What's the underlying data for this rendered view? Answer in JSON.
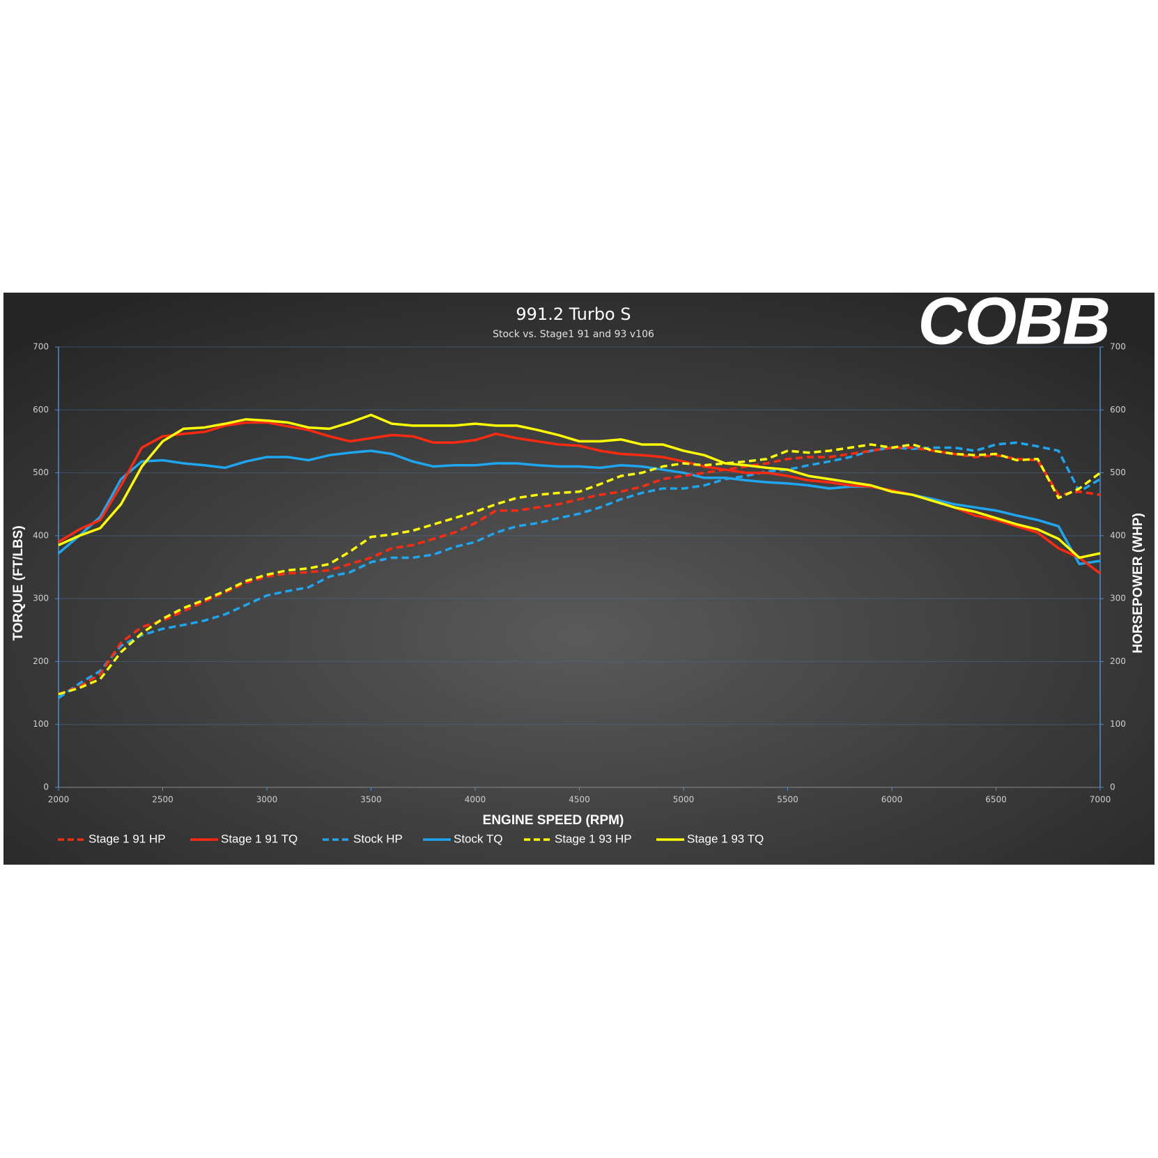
{
  "chart_data": {
    "type": "line",
    "title": "991.2 Turbo S",
    "subtitle": "Stock vs. Stage1 91 and 93 v106",
    "logo": "COBB",
    "x_label": "ENGINE SPEED (RPM)",
    "y_label": "TORQUE (FT/LBS)",
    "y2_label": "HORSEPOWER (WHP)",
    "xlim": [
      2000,
      7000
    ],
    "xticks": [
      2000,
      2500,
      3000,
      3500,
      4000,
      4500,
      5000,
      5500,
      6000,
      6500,
      7000
    ],
    "ylim": [
      0,
      700
    ],
    "yticks": [
      0,
      100,
      200,
      300,
      400,
      500,
      600,
      700
    ],
    "y2lim": [
      0,
      700
    ],
    "y2ticks": [
      0,
      100,
      200,
      300,
      400,
      500,
      600,
      700
    ],
    "grid": true,
    "legend": "bottom",
    "x": [
      2000,
      2100,
      2200,
      2300,
      2400,
      2500,
      2600,
      2700,
      2800,
      2900,
      3000,
      3100,
      3200,
      3300,
      3400,
      3500,
      3600,
      3700,
      3800,
      3900,
      4000,
      4100,
      4200,
      4300,
      4400,
      4500,
      4600,
      4700,
      4800,
      4900,
      5000,
      5100,
      5200,
      5300,
      5400,
      5500,
      5600,
      5700,
      5800,
      5900,
      6000,
      6100,
      6200,
      6300,
      6400,
      6500,
      6600,
      6700,
      6800,
      6900,
      7000
    ],
    "series": [
      {
        "name": "Stage 1 91 HP",
        "color": "#ff2a10",
        "dash": true,
        "axis": "y2",
        "values": [
          148,
          160,
          180,
          230,
          255,
          265,
          280,
          295,
          310,
          325,
          335,
          340,
          342,
          345,
          355,
          365,
          380,
          385,
          395,
          405,
          420,
          440,
          440,
          445,
          450,
          458,
          465,
          470,
          478,
          490,
          495,
          500,
          505,
          510,
          515,
          522,
          525,
          525,
          530,
          535,
          540,
          540,
          535,
          530,
          525,
          528,
          522,
          520,
          465,
          470,
          465
        ]
      },
      {
        "name": "Stage 1 91 TQ",
        "color": "#ff2a10",
        "dash": false,
        "values": [
          390,
          410,
          425,
          480,
          540,
          558,
          562,
          565,
          575,
          580,
          580,
          574,
          568,
          558,
          550,
          555,
          560,
          558,
          548,
          548,
          552,
          562,
          555,
          550,
          545,
          543,
          535,
          530,
          528,
          525,
          518,
          510,
          505,
          500,
          500,
          495,
          488,
          485,
          480,
          478,
          472,
          465,
          455,
          445,
          432,
          425,
          415,
          405,
          380,
          365,
          340
        ]
      },
      {
        "name": "Stock HP",
        "color": "#1ea7f0",
        "dash": true,
        "axis": "y2",
        "values": [
          142,
          165,
          185,
          225,
          242,
          252,
          258,
          265,
          275,
          290,
          305,
          312,
          318,
          335,
          342,
          358,
          365,
          365,
          370,
          382,
          390,
          405,
          415,
          420,
          428,
          435,
          445,
          458,
          468,
          475,
          475,
          480,
          490,
          495,
          502,
          505,
          512,
          518,
          525,
          535,
          540,
          538,
          540,
          540,
          535,
          545,
          548,
          542,
          535,
          470,
          490
        ]
      },
      {
        "name": "Stock TQ",
        "color": "#1ea7f0",
        "dash": false,
        "values": [
          372,
          400,
          430,
          490,
          518,
          520,
          515,
          512,
          508,
          518,
          525,
          525,
          520,
          528,
          532,
          535,
          530,
          518,
          510,
          512,
          512,
          515,
          515,
          512,
          510,
          510,
          508,
          512,
          510,
          505,
          500,
          492,
          492,
          488,
          485,
          483,
          480,
          475,
          478,
          478,
          472,
          465,
          458,
          450,
          445,
          440,
          432,
          425,
          415,
          355,
          360
        ]
      },
      {
        "name": "Stage 1 93 HP",
        "color": "#ffff00",
        "dash": true,
        "axis": "y2",
        "values": [
          148,
          158,
          172,
          215,
          245,
          268,
          285,
          298,
          312,
          328,
          338,
          345,
          348,
          355,
          375,
          398,
          402,
          408,
          418,
          428,
          438,
          450,
          460,
          465,
          468,
          470,
          482,
          495,
          500,
          510,
          515,
          512,
          515,
          518,
          522,
          535,
          532,
          535,
          540,
          545,
          540,
          545,
          535,
          530,
          528,
          530,
          520,
          522,
          460,
          475,
          500
        ]
      },
      {
        "name": "Stage 1 93 TQ",
        "color": "#ffff00",
        "dash": false,
        "values": [
          385,
          400,
          412,
          450,
          510,
          550,
          570,
          572,
          578,
          585,
          583,
          580,
          572,
          570,
          580,
          592,
          578,
          575,
          575,
          575,
          578,
          575,
          575,
          568,
          560,
          550,
          550,
          553,
          545,
          545,
          535,
          528,
          515,
          512,
          508,
          505,
          495,
          490,
          485,
          480,
          470,
          465,
          455,
          445,
          438,
          428,
          418,
          410,
          395,
          365,
          372
        ]
      }
    ]
  }
}
